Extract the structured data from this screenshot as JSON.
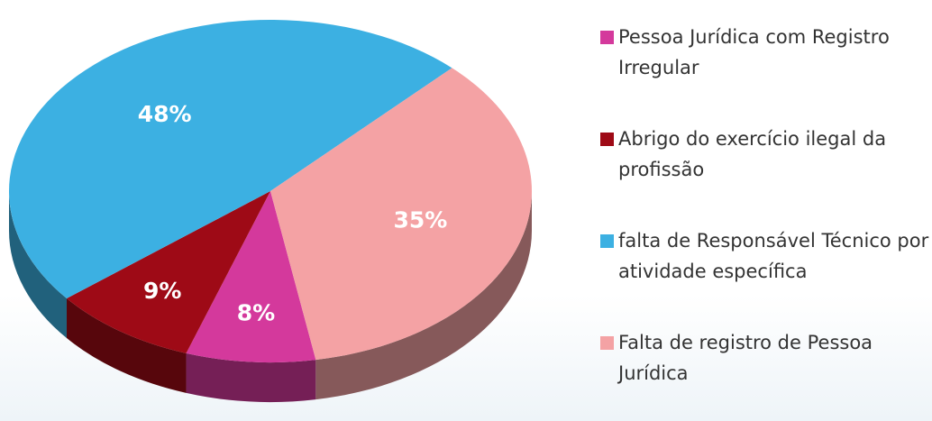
{
  "chart_data": {
    "type": "pie",
    "categories": [
      "Pessoa Jurídica com Registro Irregular",
      "Abrigo do exercício ilegal da profissão",
      "falta de Responsável Técnico por atividade específica",
      "Falta de registro de Pessoa Jurídica"
    ],
    "values": [
      8,
      9,
      48,
      35
    ],
    "value_labels": [
      "8%",
      "9%",
      "48%",
      "35%"
    ],
    "colors": [
      "#d4399c",
      "#9e0a16",
      "#3cb0e2",
      "#f4a2a4"
    ],
    "legend": "right"
  }
}
